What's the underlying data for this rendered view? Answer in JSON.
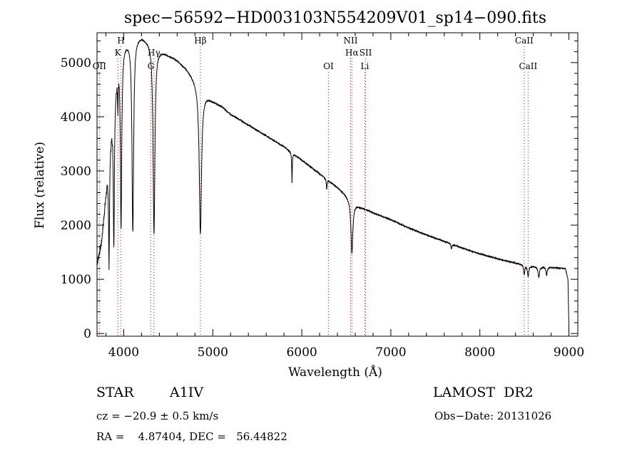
{
  "chart_data": {
    "type": "line",
    "title": "spec−56592−HD003103N554209V01_sp14−090.fits",
    "xlabel": "Wavelength (Å)",
    "ylabel": "Flux (relative)",
    "xlim": [
      3700,
      9100
    ],
    "ylim": [
      -50,
      5550
    ],
    "x_ticks": [
      4000,
      5000,
      6000,
      7000,
      8000,
      9000
    ],
    "y_ticks": [
      0,
      1000,
      2000,
      3000,
      4000,
      5000
    ],
    "grid": false,
    "spectrum_color": "#000000",
    "line_marker_color": "#ff0000",
    "continuum": [
      [
        3700,
        1300
      ],
      [
        3750,
        1700
      ],
      [
        3800,
        2600
      ],
      [
        3850,
        3600
      ],
      [
        3900,
        4500
      ],
      [
        3950,
        5100
      ],
      [
        4000,
        5350
      ],
      [
        4100,
        5500
      ],
      [
        4200,
        5500
      ],
      [
        4300,
        5400
      ],
      [
        4400,
        5250
      ],
      [
        4500,
        5150
      ],
      [
        4600,
        5050
      ],
      [
        4700,
        4900
      ],
      [
        4800,
        4700
      ],
      [
        4900,
        4450
      ],
      [
        5000,
        4300
      ],
      [
        5100,
        4200
      ],
      [
        5200,
        4050
      ],
      [
        5400,
        3850
      ],
      [
        5600,
        3650
      ],
      [
        5800,
        3450
      ],
      [
        6000,
        3200
      ],
      [
        6200,
        2950
      ],
      [
        6400,
        2700
      ],
      [
        6500,
        2550
      ],
      [
        6600,
        2400
      ],
      [
        6650,
        2340
      ],
      [
        6800,
        2230
      ],
      [
        7000,
        2100
      ],
      [
        7200,
        1950
      ],
      [
        7400,
        1820
      ],
      [
        7600,
        1700
      ],
      [
        7800,
        1580
      ],
      [
        8000,
        1470
      ],
      [
        8200,
        1380
      ],
      [
        8400,
        1300
      ],
      [
        8600,
        1240
      ],
      [
        8800,
        1220
      ],
      [
        8960,
        1200
      ],
      [
        8990,
        1000
      ],
      [
        9000,
        100
      ]
    ],
    "absorption_lines": [
      {
        "center": 3835,
        "depth": 2000,
        "width": 6
      },
      {
        "center": 3889,
        "depth": 2600,
        "width": 7
      },
      {
        "center": 3934,
        "depth": 600,
        "width": 3
      },
      {
        "center": 3970,
        "depth": 3200,
        "width": 9
      },
      {
        "center": 4102,
        "depth": 3600,
        "width": 11
      },
      {
        "center": 4340,
        "depth": 3500,
        "width": 12
      },
      {
        "center": 4861,
        "depth": 2700,
        "width": 15
      },
      {
        "center": 5890,
        "depth": 550,
        "width": 4
      },
      {
        "center": 6280,
        "depth": 180,
        "width": 5
      },
      {
        "center": 6563,
        "depth": 970,
        "width": 13
      },
      {
        "center": 7680,
        "depth": 90,
        "width": 6
      },
      {
        "center": 8498,
        "depth": 170,
        "width": 8
      },
      {
        "center": 8542,
        "depth": 200,
        "width": 9
      },
      {
        "center": 8662,
        "depth": 200,
        "width": 9
      },
      {
        "center": 8750,
        "depth": 150,
        "width": 8
      }
    ],
    "line_markers": [
      {
        "label": "OII",
        "x": 3727,
        "row": 3
      },
      {
        "label": "K",
        "x": 3934,
        "row": 2
      },
      {
        "label": "H",
        "x": 3969,
        "row": 1
      },
      {
        "label": "G",
        "x": 4305,
        "row": 3
      },
      {
        "label": "Hγ",
        "x": 4340,
        "row": 2
      },
      {
        "label": "Hβ",
        "x": 4861,
        "row": 1
      },
      {
        "label": "OI",
        "x": 6300,
        "row": 3
      },
      {
        "label": "NII",
        "x": 6548,
        "row": 1
      },
      {
        "label": "Hα",
        "x": 6563,
        "row": 2
      },
      {
        "label": "Li",
        "x": 6708,
        "row": 3
      },
      {
        "label": "SII",
        "x": 6717,
        "row": 2
      },
      {
        "label": "CaII",
        "x": 8498,
        "row": 1
      },
      {
        "label": "CaII",
        "x": 8542,
        "row": 3
      }
    ]
  },
  "info": {
    "class_label": "STAR",
    "subclass": "A1IV",
    "cz": "cz = −20.9 ± 0.5 km/s",
    "coords": "RA =    4.87404, DEC =   56.44822",
    "survey": "LAMOST  DR2",
    "obs_date": "Obs−Date: 20131026"
  }
}
